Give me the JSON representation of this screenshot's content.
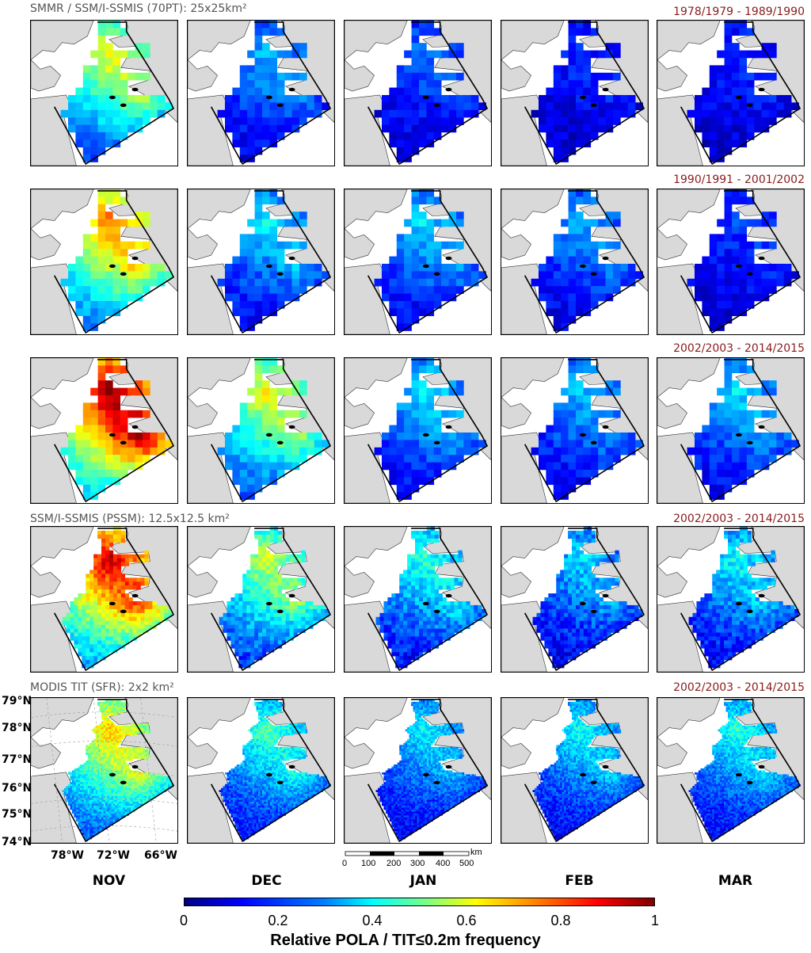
{
  "rows": [
    {
      "label": "SMMR / SSM/I-SSMIS (70PT): 25x25km²",
      "period": "1978/1979 - 1989/1990",
      "intensity": [
        0.55,
        0.25,
        0.18,
        0.12,
        0.12
      ],
      "grid": "coarse"
    },
    {
      "label": "",
      "period": "1990/1991 - 2001/2002",
      "intensity": [
        0.68,
        0.3,
        0.28,
        0.24,
        0.14
      ],
      "grid": "coarse"
    },
    {
      "label": "",
      "period": "2002/2003 - 2014/2015",
      "intensity": [
        0.88,
        0.55,
        0.3,
        0.26,
        0.28
      ],
      "grid": "coarse"
    },
    {
      "label": "SSM/I-SSMIS (PSSM): 12.5x12.5 km²",
      "period": "2002/2003 - 2014/2015",
      "intensity": [
        0.82,
        0.5,
        0.36,
        0.28,
        0.32
      ],
      "grid": "medium"
    },
    {
      "label": "MODIS TIT (SFR): 2x2 km²",
      "period": "2002/2003 - 2014/2015",
      "intensity": [
        0.6,
        0.38,
        0.3,
        0.32,
        0.34
      ],
      "grid": "fine"
    }
  ],
  "lat_labels": [
    "79°N",
    "78°N",
    "77°N",
    "76°N",
    "75°N",
    "74°N"
  ],
  "lon_labels": [
    "78°W",
    "72°W",
    "66°W"
  ],
  "months": [
    "NOV",
    "DEC",
    "JAN",
    "FEB",
    "MAR"
  ],
  "scalebar": {
    "unit": "km",
    "ticks": [
      "0",
      "100",
      "200",
      "300",
      "400",
      "500"
    ]
  },
  "colorbar": {
    "ticks": [
      "0",
      "0.2",
      "0.4",
      "0.6",
      "0.8",
      "1"
    ],
    "title": "Relative POLA / TIT≤0.2m frequency",
    "colormap": [
      "#00007f",
      "#0000ff",
      "#0080ff",
      "#00ffff",
      "#80ff80",
      "#ffff00",
      "#ff8000",
      "#ff0000",
      "#7f0000"
    ]
  },
  "colors": {
    "land": "#d9d9d9",
    "coast": "#000000",
    "period_text": "#8b1a1a",
    "label_text": "#555555"
  }
}
